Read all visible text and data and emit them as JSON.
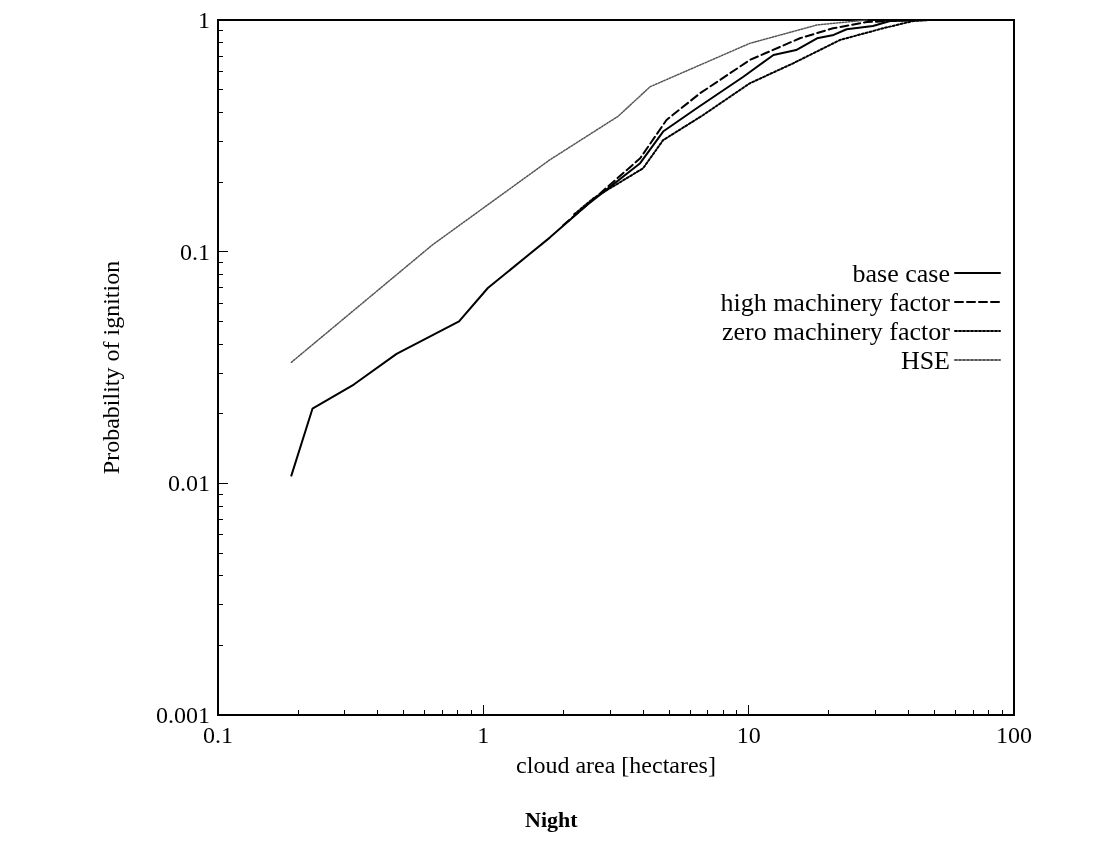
{
  "chart_data": {
    "type": "line",
    "title": "Night",
    "xlabel": "cloud area [hectares]",
    "ylabel": "Probability of ignition",
    "log": "xy",
    "xlim": [
      0.1,
      100
    ],
    "xticks": [
      0.1,
      1,
      10,
      100
    ],
    "ylim": [
      0.001,
      1
    ],
    "yticks": [
      0.001,
      0.01,
      0.1,
      1
    ],
    "grid": false,
    "legend": "right",
    "marker": "none",
    "series": [
      {
        "name": "base case",
        "color": "#000000",
        "line_style": "solid",
        "x": [
          0.189,
          0.227,
          0.325,
          0.471,
          0.81,
          1.04,
          1.78,
          2.44,
          3.9,
          4.76,
          6.37,
          9.55,
          12.4,
          15.1,
          18.1,
          20.9,
          23.4,
          29.4,
          34.1,
          48
        ],
        "values": [
          0.0108,
          0.021,
          0.0267,
          0.0362,
          0.05,
          0.0697,
          0.115,
          0.158,
          0.241,
          0.33,
          0.416,
          0.569,
          0.706,
          0.742,
          0.834,
          0.862,
          0.912,
          0.942,
          0.99,
          1
        ]
      },
      {
        "name": "high machinery factor",
        "color": "#000000",
        "line_style": "dashed",
        "x": [
          2.0,
          2.44,
          3.9,
          4.9,
          6.56,
          10.1,
          15.6,
          20.8,
          27.9,
          42
        ],
        "values": [
          0.13,
          0.158,
          0.253,
          0.37,
          0.483,
          0.672,
          0.834,
          0.921,
          0.98,
          1
        ]
      },
      {
        "name": "zero machinery factor",
        "color": "#000000",
        "line_style": "dotted",
        "x": [
          2.2,
          2.6,
          4.0,
          4.76,
          6.74,
          10.1,
          14.7,
          22.1,
          32.1,
          41.7,
          48
        ],
        "values": [
          0.145,
          0.17,
          0.229,
          0.303,
          0.389,
          0.533,
          0.65,
          0.82,
          0.921,
          0.99,
          1
        ]
      },
      {
        "name": "HSE",
        "color": "#555555",
        "line_style": "dotted",
        "x": [
          0.189,
          0.643,
          1.78,
          3.22,
          4.25,
          10.1,
          18.1,
          27.9
        ],
        "values": [
          0.0333,
          0.107,
          0.249,
          0.384,
          0.515,
          0.793,
          0.952,
          1
        ]
      }
    ]
  }
}
